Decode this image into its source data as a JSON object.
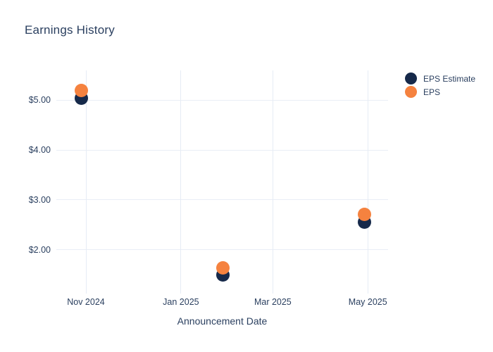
{
  "title": "Earnings History",
  "colors": {
    "eps_estimate": "#16294a",
    "eps": "#f5823f",
    "text": "#2a3f5f",
    "grid_h": "#e9eef6",
    "grid_v": "#e6ecf5",
    "background": "#ffffff"
  },
  "legend": {
    "items": [
      {
        "label": "EPS Estimate",
        "series_key": "eps_estimate"
      },
      {
        "label": "EPS",
        "series_key": "eps"
      }
    ]
  },
  "chart_data": {
    "type": "scatter",
    "title": "Earnings History",
    "xlabel": "Announcement Date",
    "ylabel": "",
    "grid": true,
    "legend_position": "outside-right-top",
    "x_range": [
      "2024-10-13",
      "2025-05-14"
    ],
    "y_range": [
      1.12,
      5.6
    ],
    "x_ticks": [
      {
        "date": "2024-11-01",
        "label": "Nov 2024"
      },
      {
        "date": "2025-01-01",
        "label": "Jan 2025"
      },
      {
        "date": "2025-03-01",
        "label": "Mar 2025"
      },
      {
        "date": "2025-05-01",
        "label": "May 2025"
      }
    ],
    "y_ticks": [
      {
        "value": 2,
        "label": "$2.00"
      },
      {
        "value": 3,
        "label": "$3.00"
      },
      {
        "value": 4,
        "label": "$4.00"
      },
      {
        "value": 5,
        "label": "$5.00"
      }
    ],
    "series": [
      {
        "name": "EPS Estimate",
        "key": "eps_estimate",
        "color": "#16294a",
        "points": [
          {
            "date": "2024-10-29",
            "value": 5.04
          },
          {
            "date": "2025-01-28",
            "value": 1.5
          },
          {
            "date": "2025-04-29",
            "value": 2.55
          }
        ]
      },
      {
        "name": "EPS",
        "key": "eps",
        "color": "#f5823f",
        "points": [
          {
            "date": "2024-10-29",
            "value": 5.2
          },
          {
            "date": "2025-01-28",
            "value": 1.63
          },
          {
            "date": "2025-04-29",
            "value": 2.71
          }
        ]
      }
    ]
  }
}
